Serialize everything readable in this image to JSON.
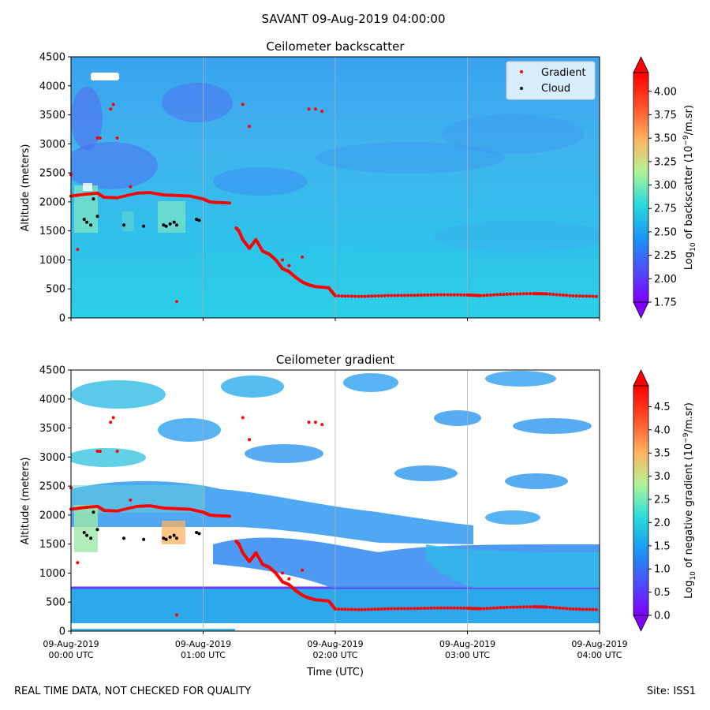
{
  "figure": {
    "title": "SAVANT 09-Aug-2019 04:00:00",
    "footer_left": "REAL TIME DATA, NOT CHECKED FOR QUALITY",
    "footer_right": "Site: ISS1"
  },
  "colors": {
    "gradient_marker": "#ff0000",
    "cloud_marker": "#000000",
    "colormap": [
      "#7f00ff",
      "#4e4dfc",
      "#1996f3",
      "#2adddd",
      "#b2f396",
      "#ffb360",
      "#ff4d27",
      "#ff0000"
    ]
  },
  "chart_data": [
    {
      "type": "heatmap",
      "title": "Ceilometer backscatter",
      "ylabel": "Altitude (meters)",
      "xlabel": "",
      "x_ticks": [
        "09-Aug-2019\n00:00 UTC",
        "09-Aug-2019\n01:00 UTC",
        "09-Aug-2019\n02:00 UTC",
        "09-Aug-2019\n03:00 UTC",
        "09-Aug-2019\n04:00 UTC"
      ],
      "show_x_ticklabels": false,
      "xlim_hours": [
        0,
        4
      ],
      "ylim": [
        0,
        4500
      ],
      "y_ticks": [
        0,
        500,
        1000,
        1500,
        2000,
        2500,
        3000,
        3500,
        4000,
        4500
      ],
      "grid": "vertical",
      "legend": {
        "placement": "top-right",
        "entries": [
          "Gradient",
          "Cloud"
        ]
      },
      "colorbar": {
        "label": "Log10 of backscatter (10^-9/m.sr)",
        "label_parts": {
          "pre": "Log",
          "sub": "10",
          "mid": " of backscatter (10",
          "sup": "−9",
          "post": "/m.sr)"
        },
        "range": [
          1.75,
          4.2
        ],
        "ticks": [
          "1.75",
          "2.00",
          "2.25",
          "2.50",
          "2.75",
          "3.00",
          "3.25",
          "3.50",
          "3.75",
          "4.00"
        ],
        "extend": "both"
      },
      "series": [
        {
          "name": "Gradient",
          "x_hours": [
            0.0,
            0.1,
            0.2,
            0.25,
            0.35,
            0.5,
            0.6,
            0.7,
            0.8,
            0.9,
            1.0,
            1.05,
            1.1,
            1.2,
            1.25,
            1.27,
            1.3,
            1.35,
            1.4,
            1.45,
            1.5,
            1.55,
            1.6,
            1.65,
            1.7,
            1.75,
            1.8,
            1.85,
            1.95,
            2.0,
            2.2,
            2.4,
            2.6,
            2.8,
            3.0,
            3.1,
            3.3,
            3.5,
            3.6,
            3.8,
            4.0
          ],
          "y_m": [
            2100,
            2130,
            2150,
            2080,
            2070,
            2150,
            2160,
            2120,
            2110,
            2100,
            2050,
            2000,
            1990,
            1980,
            1550,
            1500,
            1350,
            1200,
            1350,
            1150,
            1100,
            1000,
            850,
            800,
            700,
            620,
            570,
            540,
            520,
            380,
            370,
            385,
            390,
            400,
            395,
            385,
            410,
            420,
            415,
            380,
            370
          ]
        },
        {
          "name": "Gradient (isolated segments)",
          "x_hours": [
            0.2,
            0.22,
            0.3,
            0.32,
            0.35,
            0.45,
            1.3,
            1.35,
            1.6,
            1.65,
            1.75,
            1.8,
            1.85,
            1.9,
            0.0,
            0.05,
            0.8
          ],
          "y_m": [
            3100,
            3100,
            3600,
            3680,
            3100,
            2260,
            3680,
            3300,
            1000,
            900,
            1050,
            3600,
            3600,
            3560,
            2470,
            1180,
            280
          ]
        },
        {
          "name": "Cloud",
          "x_hours": [
            0.1,
            0.12,
            0.15,
            0.17,
            0.2,
            0.4,
            0.55,
            0.7,
            0.72,
            0.75,
            0.78,
            0.8,
            0.95,
            0.97
          ],
          "y_m": [
            1700,
            1650,
            1600,
            2050,
            1750,
            1600,
            1580,
            1600,
            1580,
            1620,
            1650,
            1600,
            1700,
            1680
          ]
        }
      ]
    },
    {
      "type": "heatmap",
      "title": "Ceilometer gradient",
      "ylabel": "Altitude (meters)",
      "xlabel": "Time (UTC)",
      "x_ticks": [
        "09-Aug-2019\n00:00 UTC",
        "09-Aug-2019\n01:00 UTC",
        "09-Aug-2019\n02:00 UTC",
        "09-Aug-2019\n03:00 UTC",
        "09-Aug-2019\n04:00 UTC"
      ],
      "show_x_ticklabels": true,
      "xlim_hours": [
        0,
        4
      ],
      "ylim": [
        0,
        4500
      ],
      "y_ticks": [
        0,
        500,
        1000,
        1500,
        2000,
        2500,
        3000,
        3500,
        4000,
        4500
      ],
      "grid": "vertical",
      "colorbar": {
        "label": "Log10 of negative gradient (10^-9/m.sr)",
        "label_parts": {
          "pre": "Log",
          "sub": "10",
          "mid": " of negative gradient (10",
          "sup": "−9",
          "post": "/m.sr)"
        },
        "range": [
          0.0,
          4.95
        ],
        "ticks": [
          "0.0",
          "0.5",
          "1.0",
          "1.5",
          "2.0",
          "2.5",
          "3.0",
          "3.5",
          "4.0",
          "4.5"
        ],
        "extend": "both"
      }
    }
  ]
}
